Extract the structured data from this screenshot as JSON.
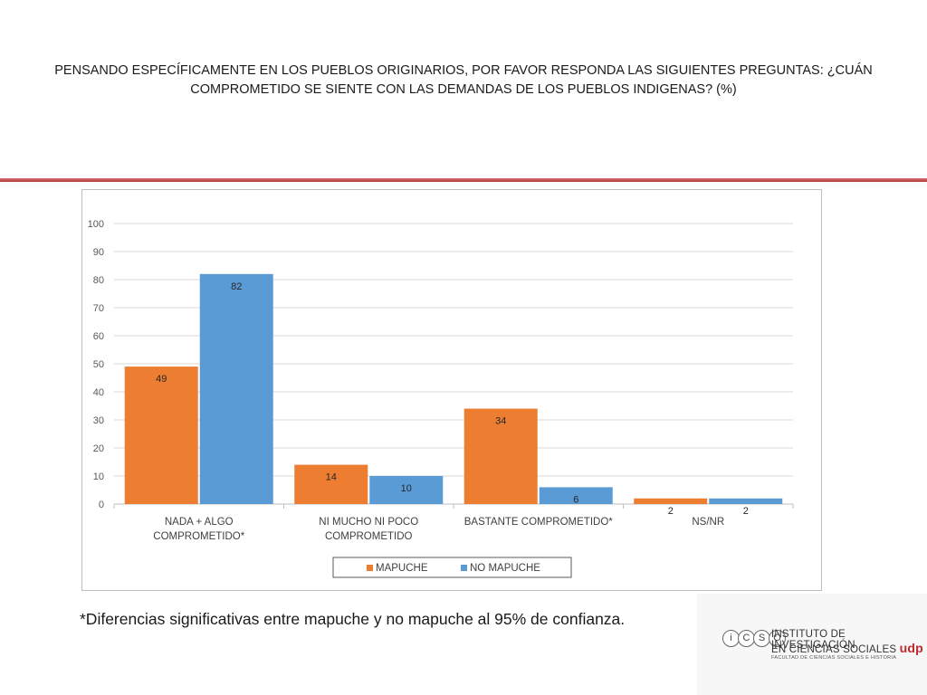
{
  "slide": {
    "title_line1": "PENSANDO ESPECÍFICAMENTE EN LOS PUEBLOS ORIGINARIOS, POR FAVOR RESPONDA LAS SIGUIENTES PREGUNTAS: ¿CUÁN",
    "title_line2": "COMPROMETIDO SE SIENTE CON LAS DEMANDAS DE LOS PUEBLOS INDIGENAS? (%)",
    "footnote": "*Diferencias significativas entre mapuche y no mapuche al 95% de confianza.",
    "divider_color": "#c0504d"
  },
  "logo": {
    "badges": [
      "i",
      "C",
      "S",
      "O"
    ],
    "line1": "INSTITUTO DE INVESTIGACIÓN",
    "line2": "EN CIENCIAS SOCIALES",
    "brand": "udp",
    "line3": "FACULTAD DE CIENCIAS SOCIALES E HISTORIA"
  },
  "chart_data": {
    "type": "bar",
    "title": "",
    "xlabel": "",
    "ylabel": "",
    "categories": [
      [
        "NADA + ALGO",
        "COMPROMETIDO*"
      ],
      [
        "NI MUCHO NI POCO",
        "COMPROMETIDO"
      ],
      [
        "BASTANTE COMPROMETIDO*"
      ],
      [
        "NS/NR"
      ]
    ],
    "series": [
      {
        "name": "MAPUCHE",
        "values": [
          49,
          14,
          34,
          2
        ],
        "labels": [
          "49",
          "14",
          "34",
          "2"
        ],
        "color": "#ed7d31"
      },
      {
        "name": "NO MAPUCHE",
        "values": [
          82,
          10,
          6,
          2
        ],
        "labels": [
          "82",
          "10",
          "6",
          "2"
        ],
        "color": "#5b9bd5"
      }
    ],
    "ylim": [
      0,
      100
    ],
    "yticks": [
      0,
      10,
      20,
      30,
      40,
      50,
      60,
      70,
      80,
      90,
      100
    ],
    "grid": true,
    "legend_position": "bottom"
  }
}
